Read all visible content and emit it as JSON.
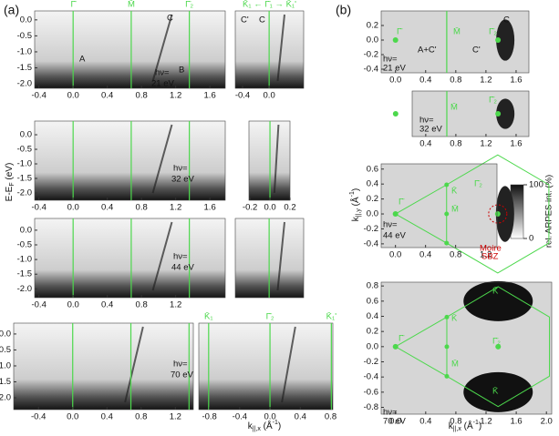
{
  "figure_labels": [
    "(a)",
    "(b)"
  ],
  "energy_label": [
    "E-E",
    "F",
    "(eV)"
  ],
  "kx_label": [
    "k",
    "||,x",
    "(Å",
    "-1",
    ")"
  ],
  "ky_label": [
    "k",
    "||,y",
    "(Å",
    "-1",
    ")"
  ],
  "colorbar": {
    "ticks": [
      100,
      0
    ],
    "label": "rel. ARPES int. (%)"
  },
  "panels": [
    {
      "xlim": [
        -0.45,
        1.78
      ],
      "ylim": [
        -2.14,
        0.28
      ],
      "xticks": [
        -0.4,
        {
          "value": 0,
          "label": "0.0"
        },
        0.4,
        0.8,
        1.2,
        1.6
      ],
      "yticks": [
        {
          "value": 0,
          "label": "0.0"
        },
        -0.5,
        {
          "value": -1,
          "label": "-1.0"
        },
        -1.5,
        {
          "value": -2,
          "label": "-2.0"
        }
      ],
      "lines": [
        0,
        0.68,
        1.36
      ],
      "line_labels": [
        "Γ̄",
        "M̄",
        "Γ̄₂"
      ],
      "notes": [
        "A",
        "B",
        "C",
        "hν=",
        "21 eV"
      ]
    },
    {
      "xlim": [
        -0.51,
        0.52
      ],
      "ylim": [
        -2.14,
        0.28
      ],
      "xticks": [
        -0.4,
        {
          "value": 0,
          "label": "0.0"
        }
      ],
      "lines": [
        0
      ],
      "top_label": "K̄₁ ← Γ̄₁ → K̄₁'",
      "notes": [
        "C'",
        "C"
      ]
    },
    {
      "xlim": [
        -0.45,
        1.78
      ],
      "ylim": [
        -2.25,
        0.47
      ],
      "xticks": [
        -0.4,
        {
          "value": 0,
          "label": "0.0"
        },
        0.4,
        0.8,
        1.2,
        1.6
      ],
      "yticks": [
        {
          "value": 0,
          "label": "0.0"
        },
        -0.5,
        {
          "value": -1,
          "label": "-1.0"
        },
        -1.5,
        {
          "value": -2,
          "label": "-2.0"
        }
      ],
      "lines": [
        0,
        0.68,
        1.36
      ],
      "notes": [
        "hν=",
        "32 eV"
      ]
    },
    {
      "xlim": [
        -0.21,
        0.2
      ],
      "ylim": [
        -2.25,
        0.47
      ],
      "xticks": [
        -0.2,
        {
          "value": 0,
          "label": "0.0"
        },
        0.2
      ],
      "lines": [
        0
      ]
    },
    {
      "xlim": [
        -0.45,
        1.78
      ],
      "ylim": [
        -2.3,
        0.4
      ],
      "xticks": [
        -0.4,
        {
          "value": 0,
          "label": "0.0"
        },
        0.4,
        0.8,
        1.2
      ],
      "yticks": [
        {
          "value": 0,
          "label": "0.0"
        },
        -0.5,
        {
          "value": -1,
          "label": "-1.0"
        },
        -1.5,
        {
          "value": -2,
          "label": "-2.0"
        }
      ],
      "lines": [
        0,
        0.68,
        1.36
      ],
      "notes": [
        "hν=",
        "44 eV"
      ]
    },
    {
      "xlim": [
        -0.51,
        0.52
      ],
      "ylim": [
        -2.3,
        0.4
      ],
      "lines": [
        0
      ]
    },
    {
      "xlim": [
        -0.69,
        1.41
      ],
      "ylim": [
        -2.37,
        0.34
      ],
      "xticks": [
        -0.4,
        {
          "value": 0,
          "label": "0.0"
        },
        0.4,
        0.8,
        1.2
      ],
      "yticks": [
        {
          "value": 0,
          "label": "0.0"
        },
        -0.5,
        {
          "value": -1,
          "label": "-1.0"
        },
        -1.5,
        {
          "value": -2,
          "label": "-2.0"
        }
      ],
      "lines": [
        0,
        0.68,
        1.36
      ],
      "notes": [
        "hν=",
        "70 eV"
      ]
    },
    {
      "xlim": [
        -0.94,
        0.83
      ],
      "ylim": [
        -2.37,
        0.34
      ],
      "xticks": [
        -0.8,
        -0.4,
        {
          "value": 0,
          "label": "0.0"
        },
        0.4,
        0.8
      ],
      "lines": [
        -0.81,
        0,
        0.81
      ],
      "line_labels": [
        "K̄₁",
        "Γ̄₂",
        "K̄₁'"
      ]
    },
    {
      "xlim": [
        -0.19,
        1.77
      ],
      "ylim": [
        -0.45,
        0.4
      ],
      "xticks": [
        {
          "value": 0,
          "label": "0.0"
        },
        0.4,
        0.8,
        1.2,
        1.6
      ],
      "yticks": [
        0.2,
        {
          "value": 0,
          "label": "0.0"
        },
        -0.2,
        -0.4
      ],
      "lines": [
        0.68
      ],
      "notes": [
        "Γ̄",
        "M̄",
        "Γ̄₂",
        "C",
        "A+C'",
        "C'",
        "hν=",
        "21 eV"
      ]
    },
    {
      "xlim": [
        0.22,
        1.77
      ],
      "ylim": [
        -0.3,
        0.3
      ],
      "xticks": [
        0.4,
        0.8,
        1.2,
        1.6
      ],
      "lines": [
        0.68
      ],
      "notes": [
        "M̄",
        "Γ̄₂",
        "hν=",
        "32 eV"
      ]
    },
    {
      "xlim": [
        -0.19,
        1.35
      ],
      "ylim": [
        -0.45,
        0.67
      ],
      "xticks": [
        {
          "value": 0,
          "label": "0.0"
        },
        0.4,
        0.8,
        1.2
      ],
      "yticks": [
        0.6,
        0.4,
        0.2,
        {
          "value": 0,
          "label": "0.0"
        },
        -0.2,
        -0.4
      ],
      "notes": [
        "Γ̄",
        "K̄",
        "M̄",
        "Γ̄₂",
        "hν=",
        "44 eV",
        "Moire",
        "SBZ"
      ]
    },
    {
      "xlim": [
        -0.19,
        2.07
      ],
      "ylim": [
        -0.89,
        0.85
      ],
      "xticks": [
        {
          "value": 0,
          "label": "0.0"
        },
        0.4,
        0.8,
        1.2,
        1.6,
        {
          "value": 2,
          "label": "2.0"
        }
      ],
      "yticks": [
        0.8,
        0.6,
        0.4,
        0.2,
        {
          "value": 0,
          "label": "0.0"
        },
        -0.2,
        -0.4,
        -0.6,
        -0.8
      ],
      "notes": [
        "Γ̄",
        "K̄",
        "M̄",
        "K̄",
        "Γ̄₂",
        "K̄",
        "hν=",
        "70 eV"
      ]
    }
  ]
}
